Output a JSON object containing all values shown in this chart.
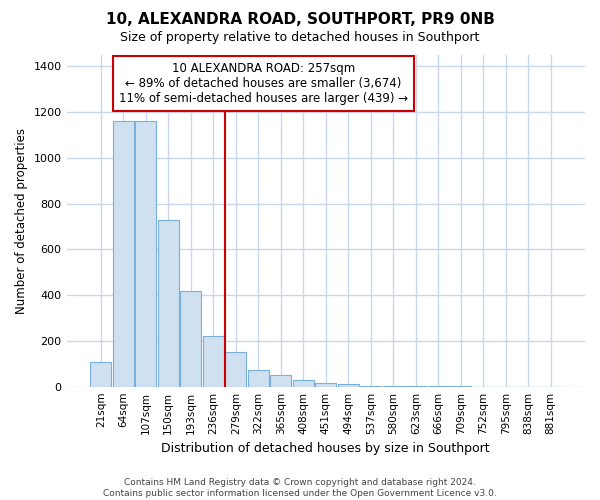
{
  "title": "10, ALEXANDRA ROAD, SOUTHPORT, PR9 0NB",
  "subtitle": "Size of property relative to detached houses in Southport",
  "xlabel": "Distribution of detached houses by size in Southport",
  "ylabel": "Number of detached properties",
  "footer": "Contains HM Land Registry data © Crown copyright and database right 2024.\nContains public sector information licensed under the Open Government Licence v3.0.",
  "annotation_title": "10 ALEXANDRA ROAD: 257sqm",
  "annotation_line1": "← 89% of detached houses are smaller (3,674)",
  "annotation_line2": "11% of semi-detached houses are larger (439) →",
  "bar_color": "#cfe0f0",
  "bar_edge_color": "#7ab0d8",
  "annotation_line_color": "#cc0000",
  "ylim": [
    0,
    1450
  ],
  "yticks": [
    0,
    200,
    400,
    600,
    800,
    1000,
    1200,
    1400
  ],
  "categories": [
    "21sqm",
    "64sqm",
    "107sqm",
    "150sqm",
    "193sqm",
    "236sqm",
    "279sqm",
    "322sqm",
    "365sqm",
    "408sqm",
    "451sqm",
    "494sqm",
    "537sqm",
    "580sqm",
    "623sqm",
    "666sqm",
    "709sqm",
    "752sqm",
    "795sqm",
    "838sqm",
    "881sqm"
  ],
  "values": [
    110,
    1160,
    1160,
    730,
    420,
    220,
    150,
    75,
    50,
    30,
    15,
    10,
    5,
    3,
    2,
    1,
    1,
    0,
    0,
    0,
    0
  ],
  "subject_bin_index": 6,
  "background_color": "#ffffff",
  "plot_background": "#ffffff",
  "grid_color": "#c8d8ec",
  "annotation_box_color": "#ffffff"
}
